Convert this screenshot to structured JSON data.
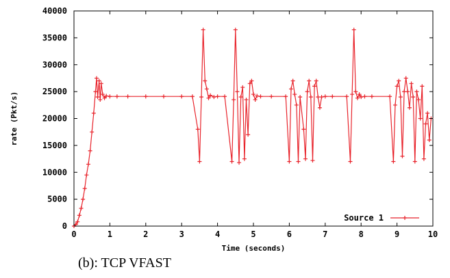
{
  "caption": "(b): TCP VFAST",
  "chart_data": {
    "type": "line",
    "xlabel": "Time (seconds)",
    "ylabel": "rate (Pkt/s)",
    "xlim": [
      0,
      10
    ],
    "ylim": [
      0,
      40000
    ],
    "x_ticks": [
      "0",
      "1",
      "2",
      "3",
      "4",
      "5",
      "6",
      "7",
      "8",
      "9",
      "10"
    ],
    "y_ticks": [
      "0",
      "5000",
      "10000",
      "15000",
      "20000",
      "25000",
      "30000",
      "35000",
      "40000"
    ],
    "grid": false,
    "legend_position": "bottom-right",
    "marker": "+",
    "series": [
      {
        "name": "Source 1",
        "color": "#e8222a",
        "x": [
          0,
          0.05,
          0.1,
          0.15,
          0.2,
          0.25,
          0.3,
          0.35,
          0.4,
          0.45,
          0.5,
          0.55,
          0.6,
          0.63,
          0.66,
          0.7,
          0.73,
          0.76,
          0.8,
          0.85,
          0.9,
          1.0,
          1.2,
          1.5,
          2.0,
          2.5,
          3.0,
          3.3,
          3.45,
          3.5,
          3.55,
          3.6,
          3.65,
          3.7,
          3.75,
          3.8,
          3.9,
          4.0,
          4.2,
          4.4,
          4.45,
          4.5,
          4.55,
          4.6,
          4.65,
          4.7,
          4.75,
          4.8,
          4.85,
          4.9,
          4.95,
          5.0,
          5.05,
          5.1,
          5.2,
          5.5,
          5.9,
          6.0,
          6.05,
          6.1,
          6.15,
          6.2,
          6.25,
          6.3,
          6.4,
          6.45,
          6.5,
          6.55,
          6.6,
          6.65,
          6.7,
          6.75,
          6.8,
          6.85,
          6.9,
          7.0,
          7.2,
          7.6,
          7.7,
          7.75,
          7.8,
          7.85,
          7.9,
          7.95,
          8.0,
          8.1,
          8.3,
          8.8,
          8.9,
          8.95,
          9.0,
          9.05,
          9.1,
          9.15,
          9.2,
          9.25,
          9.3,
          9.35,
          9.4,
          9.45,
          9.5,
          9.55,
          9.6,
          9.65,
          9.7,
          9.75,
          9.8,
          9.85,
          9.9,
          9.95
        ],
        "y": [
          0,
          300,
          800,
          2000,
          3300,
          5000,
          7000,
          9500,
          11500,
          14000,
          17500,
          21000,
          25000,
          27500,
          24000,
          27000,
          23500,
          26500,
          24500,
          23800,
          24200,
          24100,
          24100,
          24100,
          24100,
          24100,
          24100,
          24100,
          18000,
          12000,
          24000,
          36500,
          27000,
          25500,
          23800,
          24300,
          24000,
          24100,
          24100,
          12000,
          23500,
          36500,
          25000,
          11800,
          24000,
          25800,
          12500,
          23500,
          17000,
          26500,
          27000,
          24500,
          23500,
          24200,
          24100,
          24100,
          24100,
          12000,
          25500,
          27000,
          24500,
          22500,
          12000,
          24000,
          18000,
          12500,
          25000,
          27000,
          24000,
          12200,
          26000,
          27000,
          24000,
          22000,
          24000,
          24100,
          24100,
          24100,
          12000,
          24500,
          36500,
          25000,
          23800,
          24500,
          24000,
          24100,
          24100,
          24100,
          12000,
          22500,
          26000,
          27000,
          24000,
          13000,
          25000,
          27500,
          25000,
          22000,
          26500,
          24000,
          12000,
          25000,
          23500,
          20000,
          26000,
          12500,
          19000,
          21000,
          16000,
          20000
        ]
      }
    ]
  }
}
